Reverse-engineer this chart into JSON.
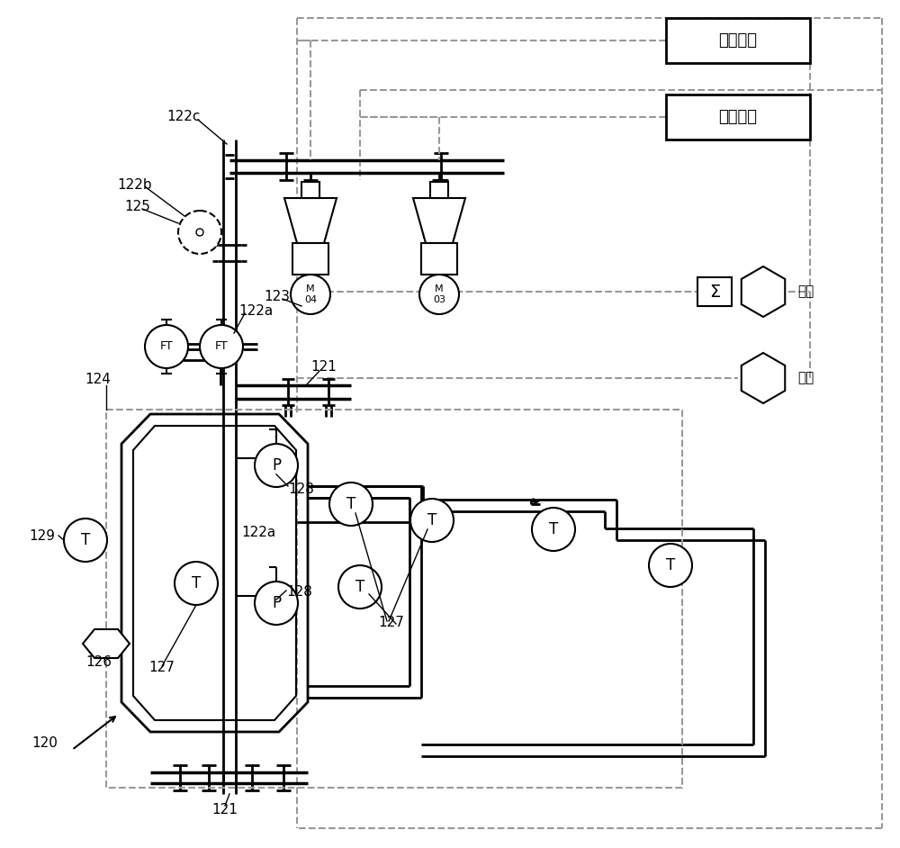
{
  "bg_color": "#ffffff",
  "black": "#000000",
  "gray": "#999999",
  "xianchang": "现场总线",
  "qiuhe": "求和",
  "chuanji": "串级"
}
